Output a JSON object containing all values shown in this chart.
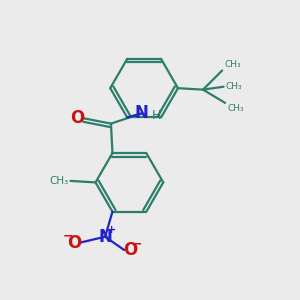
{
  "bg_color": "#ebebeb",
  "bond_color": "#2d7d6b",
  "N_color": "#2222cc",
  "O_color": "#cc1111",
  "H_color": "#2d7d6b",
  "figsize": [
    3.0,
    3.0
  ],
  "dpi": 100,
  "xlim": [
    0,
    10
  ],
  "ylim": [
    0,
    10
  ]
}
